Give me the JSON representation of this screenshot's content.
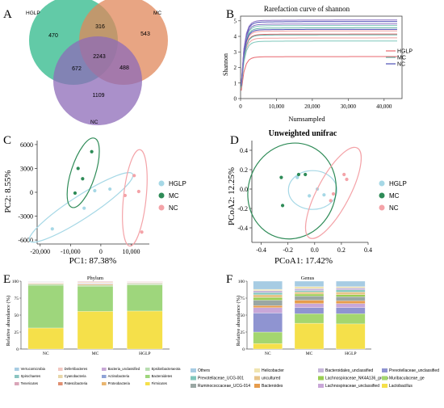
{
  "panels": {
    "A": {
      "letter": "A",
      "sets": [
        {
          "name": "HGLP",
          "color": "#2eb88a"
        },
        {
          "name": "MC",
          "color": "#e0875a"
        },
        {
          "name": "NC",
          "color": "#8e6bb8"
        }
      ],
      "regions": {
        "hglp_only": "470",
        "hglp_mc": "316",
        "mc_only": "543",
        "all": "2243",
        "hglp_nc": "672",
        "mc_nc": "488",
        "nc_only": "1109"
      }
    },
    "B": {
      "letter": "B"
    },
    "C": {
      "letter": "C"
    },
    "D": {
      "letter": "D"
    },
    "E": {
      "letter": "E"
    },
    "F": {
      "letter": "F"
    }
  },
  "groups_colors": {
    "HGLP": "#a6d8e6",
    "MC": "#2e8b57",
    "NC": "#f4a3a8"
  },
  "chart_data": [
    {
      "panel": "B",
      "type": "line",
      "title": "Rarefaction curve of shannon",
      "xlabel": "Numsampled",
      "ylabel": "Shannon",
      "xlim": [
        0,
        45000
      ],
      "ylim": [
        0,
        5.3
      ],
      "xticks": [
        0,
        10000,
        20000,
        30000,
        40000
      ],
      "xtick_labels": [
        "0",
        "10,000",
        "20,000",
        "30,000",
        "40,000"
      ],
      "yticks": [
        0,
        1,
        2,
        3,
        4,
        5
      ],
      "legend": [
        "HGLP",
        "MC",
        "NC"
      ],
      "legend_position": "right",
      "legend_colors": [
        "#e8676e",
        "#5fb3a6",
        "#4d4fb5"
      ],
      "curves": [
        {
          "group": "HGLP",
          "color": "#e8676e",
          "plateau": 2.7
        },
        {
          "group": "HGLP",
          "color": "#f0a0a0",
          "plateau": 3.9
        },
        {
          "group": "HGLP",
          "color": "#e8676e",
          "plateau": 4.15
        },
        {
          "group": "HGLP",
          "color": "#f0a0a0",
          "plateau": 4.35
        },
        {
          "group": "MC",
          "color": "#7fc7bb",
          "plateau": 3.7
        },
        {
          "group": "MC",
          "color": "#5fb3a6",
          "plateau": 4.1
        },
        {
          "group": "MC",
          "color": "#5fb3a6",
          "plateau": 4.55
        },
        {
          "group": "MC",
          "color": "#7fc7bb",
          "plateau": 4.7
        },
        {
          "group": "NC",
          "color": "#4d4fb5",
          "plateau": 4.45
        },
        {
          "group": "NC",
          "color": "#8a6fc4",
          "plateau": 4.8
        },
        {
          "group": "NC",
          "color": "#4d4fb5",
          "plateau": 4.95
        },
        {
          "group": "NC",
          "color": "#8a6fc4",
          "plateau": 5.05
        }
      ]
    },
    {
      "panel": "C",
      "type": "scatter",
      "xlabel": "PC1: 87.38%",
      "ylabel": "PC2: 8.55%",
      "xlim": [
        -21000,
        16000
      ],
      "ylim": [
        -6500,
        6500
      ],
      "xticks": [
        -20000,
        -10000,
        0,
        10000
      ],
      "xtick_labels": [
        "-20,000",
        "-10,000",
        "0",
        "10,000"
      ],
      "yticks": [
        -6000,
        -3000,
        0,
        3000,
        6000
      ],
      "legend": [
        "HGLP",
        "MC",
        "NC"
      ],
      "legend_position": "right",
      "series": [
        {
          "name": "HGLP",
          "points": [
            [
              -16000,
              -4600
            ],
            [
              -5500,
              -2000
            ],
            [
              -2000,
              200
            ],
            [
              3000,
              400
            ]
          ]
        },
        {
          "name": "MC",
          "points": [
            [
              -8500,
              -100
            ],
            [
              -7500,
              3000
            ],
            [
              -6000,
              1700
            ],
            [
              -3000,
              5100
            ]
          ]
        },
        {
          "name": "NC",
          "points": [
            [
              8000,
              -400
            ],
            [
              11000,
              2100
            ],
            [
              12500,
              100
            ],
            [
              13500,
              -5000
            ]
          ]
        }
      ]
    },
    {
      "panel": "D",
      "type": "scatter",
      "title": "Unweighted unifrac",
      "xlabel": "PCoA1: 17.42%",
      "ylabel": "PCoA2: 12.25%",
      "xlim": [
        -0.47,
        0.4
      ],
      "ylim": [
        -0.55,
        0.5
      ],
      "xticks": [
        -0.4,
        -0.2,
        0,
        0.2,
        0.4
      ],
      "xtick_labels": [
        "-0.4",
        "-0.2",
        "0.0",
        "0.2",
        "0.4"
      ],
      "yticks": [
        -0.4,
        -0.2,
        0,
        0.2,
        0.4
      ],
      "yticks_labels": [
        "-0.4",
        "-0.2",
        "0.0",
        "0.2",
        "0.4"
      ],
      "legend": [
        "HGLP",
        "MC",
        "NC"
      ],
      "legend_position": "right",
      "series": [
        {
          "name": "HGLP",
          "points": [
            [
              -0.13,
              0.12
            ],
            [
              0.02,
              0.0
            ],
            [
              0.07,
              -0.06
            ],
            [
              -0.04,
              -0.07
            ]
          ]
        },
        {
          "name": "MC",
          "points": [
            [
              -0.25,
              0.12
            ],
            [
              -0.12,
              0.15
            ],
            [
              -0.07,
              0.15
            ],
            [
              -0.24,
              -0.17
            ]
          ]
        },
        {
          "name": "NC",
          "points": [
            [
              0.12,
              -0.12
            ],
            [
              0.14,
              -0.05
            ],
            [
              0.22,
              0.15
            ],
            [
              0.24,
              0.1
            ]
          ]
        }
      ]
    },
    {
      "panel": "E",
      "type": "bar",
      "stacked": true,
      "title": "Phylum",
      "ylabel": "Relative abundance (%)",
      "categories": [
        "NC",
        "MC",
        "HGLP"
      ],
      "ylim": [
        0,
        100
      ],
      "yticks": [
        0,
        25,
        50,
        75,
        100
      ],
      "series": [
        {
          "name": "Firmicutes",
          "color": "#f5e04a",
          "values": [
            31,
            55.5,
            56
          ]
        },
        {
          "name": "Bacteroidetes",
          "color": "#9ed67c",
          "values": [
            63,
            37,
            38.5
          ]
        },
        {
          "name": "Epsilonbacteraeota",
          "color": "#b7ddb0",
          "values": [
            1.5,
            1.6,
            1.5
          ]
        },
        {
          "name": "Proteobacteria",
          "color": "#e9b56f",
          "values": [
            1,
            1.5,
            1
          ]
        },
        {
          "name": "Actinobacteria",
          "color": "#8fa3d6",
          "values": [
            0.5,
            0.8,
            0.6
          ]
        },
        {
          "name": "Patescibacteria",
          "color": "#e08f71",
          "values": [
            0.5,
            0.6,
            0.5
          ]
        },
        {
          "name": "Bacteria_unclassified",
          "color": "#c7a7d6",
          "values": [
            0.5,
            0.5,
            0.4
          ]
        },
        {
          "name": "Cyanobacteria",
          "color": "#e8d7a8",
          "values": [
            0.5,
            0.8,
            0.6
          ]
        },
        {
          "name": "Deferribacteres",
          "color": "#f2c7c0",
          "values": [
            0.6,
            1,
            0.5
          ]
        },
        {
          "name": "Tenericutes",
          "color": "#d9a5b8",
          "values": [
            0.4,
            0.7,
            0.4
          ]
        },
        {
          "name": "Spirochaetes",
          "color": "#8ac4c0",
          "values": [
            0.2,
            0.4,
            0.3
          ]
        },
        {
          "name": "Verrucomicrobia",
          "color": "#a7cce3",
          "values": [
            0.3,
            0.1,
            0.2
          ]
        }
      ],
      "legend": [
        {
          "name": "Verrucomicrobia",
          "color": "#a7cce3"
        },
        {
          "name": "Deferribacteres",
          "color": "#f2c7c0"
        },
        {
          "name": "Bacteria_unclassified",
          "color": "#c7a7d6"
        },
        {
          "name": "Epsilonbacteraeota",
          "color": "#b7ddb0"
        },
        {
          "name": "Spirochaetes",
          "color": "#8ac4c0"
        },
        {
          "name": "Cyanobacteria",
          "color": "#e8d7a8"
        },
        {
          "name": "Actinobacteria",
          "color": "#8fa3d6"
        },
        {
          "name": "Bacteroidetes",
          "color": "#9ed67c"
        },
        {
          "name": "Tenericutes",
          "color": "#d9a5b8"
        },
        {
          "name": "Patescibacteria",
          "color": "#e08f71"
        },
        {
          "name": "Proteobacteria",
          "color": "#e9b56f"
        },
        {
          "name": "Firmicutes",
          "color": "#f5e04a"
        }
      ]
    },
    {
      "panel": "F",
      "type": "bar",
      "stacked": true,
      "title": "Genus",
      "ylabel": "Relative abundance (%)",
      "categories": [
        "NC",
        "MC",
        "HGLP"
      ],
      "ylim": [
        0,
        100
      ],
      "yticks": [
        0,
        25,
        50,
        75,
        100
      ],
      "series": [
        {
          "name": "Lactobacillus",
          "color": "#f5e04a",
          "values": [
            8,
            38,
            37
          ]
        },
        {
          "name": "Muribaculaceae_ge",
          "color": "#a4d66f",
          "values": [
            17,
            14,
            15
          ]
        },
        {
          "name": "Prevotellaceae_unclassified",
          "color": "#8f94d1",
          "values": [
            28,
            9,
            9
          ]
        },
        {
          "name": "Lachnospiraceae_unclassified",
          "color": "#c9a7d8",
          "values": [
            8,
            6,
            6
          ]
        },
        {
          "name": "Bacteroides",
          "color": "#e69c4c",
          "values": [
            3,
            5,
            4
          ]
        },
        {
          "name": "Ruminococcaceae_UCG-014",
          "color": "#9aa7a4",
          "values": [
            8,
            6,
            6
          ]
        },
        {
          "name": "Lachnospiraceae_NK4A136_group",
          "color": "#9acd52",
          "values": [
            4,
            3,
            3
          ]
        },
        {
          "name": "uncultured",
          "color": "#e7c48a",
          "values": [
            4,
            3,
            4
          ]
        },
        {
          "name": "Prevotellaceae_UCG-001",
          "color": "#7fc6bb",
          "values": [
            3,
            2,
            3
          ]
        },
        {
          "name": "Bacteroidales_unclassified",
          "color": "#c6b7d9",
          "values": [
            3,
            3,
            3
          ]
        },
        {
          "name": "Helicobacter",
          "color": "#f0e4b0",
          "values": [
            2,
            3,
            2
          ]
        },
        {
          "name": "Others",
          "color": "#a7cce3",
          "values": [
            12,
            8,
            8
          ]
        }
      ],
      "legend": [
        {
          "name": "Others",
          "color": "#a7cce3"
        },
        {
          "name": "Helicobacter",
          "color": "#f0e4b0"
        },
        {
          "name": "Bacteroidales_unclassified",
          "color": "#c6b7d9"
        },
        {
          "name": "Prevotellaceae_unclassified",
          "color": "#8f94d1"
        },
        {
          "name": "Prevotellaceae_UCG-001",
          "color": "#7fc6bb"
        },
        {
          "name": "uncultured",
          "color": "#e7c48a"
        },
        {
          "name": "Lachnospiraceae_NK4A136_group",
          "color": "#9acd52"
        },
        {
          "name": "Muribaculaceae_ge",
          "color": "#a4d66f"
        },
        {
          "name": "Ruminococcaceae_UCG-014",
          "color": "#9aa7a4"
        },
        {
          "name": "Bacteroides",
          "color": "#e69c4c"
        },
        {
          "name": "Lachnospiraceae_unclassified",
          "color": "#c9a7d8"
        },
        {
          "name": "Lactobacillus",
          "color": "#f5e04a"
        }
      ]
    }
  ]
}
